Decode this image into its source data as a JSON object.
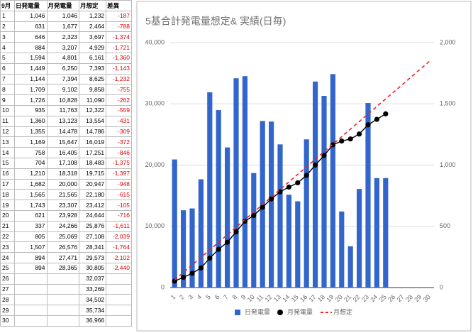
{
  "table": {
    "columns": [
      "9月",
      "日発電量",
      "月発電量",
      "月想定",
      "差異"
    ],
    "rows": [
      {
        "day": "1",
        "daily": "1,046",
        "monthly": "1,046",
        "expected": "1,232",
        "diff": "-187"
      },
      {
        "day": "2",
        "daily": "631",
        "monthly": "1,677",
        "expected": "2,464",
        "diff": "-788"
      },
      {
        "day": "3",
        "daily": "646",
        "monthly": "2,323",
        "expected": "3,697",
        "diff": "-1,374"
      },
      {
        "day": "4",
        "daily": "884",
        "monthly": "3,207",
        "expected": "4,929",
        "diff": "-1,721"
      },
      {
        "day": "5",
        "daily": "1,594",
        "monthly": "4,801",
        "expected": "6,161",
        "diff": "-1,360"
      },
      {
        "day": "6",
        "daily": "1,449",
        "monthly": "6,250",
        "expected": "7,393",
        "diff": "-1,143"
      },
      {
        "day": "7",
        "daily": "1,144",
        "monthly": "7,394",
        "expected": "8,625",
        "diff": "-1,232"
      },
      {
        "day": "8",
        "daily": "1,709",
        "monthly": "9,102",
        "expected": "9,858",
        "diff": "-755"
      },
      {
        "day": "9",
        "daily": "1,726",
        "monthly": "10,828",
        "expected": "11,090",
        "diff": "-262"
      },
      {
        "day": "10",
        "daily": "935",
        "monthly": "11,763",
        "expected": "12,322",
        "diff": "-559"
      },
      {
        "day": "11",
        "daily": "1,360",
        "monthly": "13,123",
        "expected": "13,554",
        "diff": "-431"
      },
      {
        "day": "12",
        "daily": "1,355",
        "monthly": "14,478",
        "expected": "14,786",
        "diff": "-309"
      },
      {
        "day": "13",
        "daily": "1,169",
        "monthly": "15,647",
        "expected": "16,019",
        "diff": "-372"
      },
      {
        "day": "14",
        "daily": "758",
        "monthly": "16,405",
        "expected": "17,251",
        "diff": "-846"
      },
      {
        "day": "15",
        "daily": "704",
        "monthly": "17,108",
        "expected": "18,483",
        "diff": "-1,375"
      },
      {
        "day": "16",
        "daily": "1,210",
        "monthly": "18,318",
        "expected": "19,715",
        "diff": "-1,397"
      },
      {
        "day": "17",
        "daily": "1,682",
        "monthly": "20,000",
        "expected": "20,947",
        "diff": "-948"
      },
      {
        "day": "18",
        "daily": "1,565",
        "monthly": "21,565",
        "expected": "22,180",
        "diff": "-615"
      },
      {
        "day": "19",
        "daily": "1,743",
        "monthly": "23,307",
        "expected": "23,412",
        "diff": "-105"
      },
      {
        "day": "20",
        "daily": "621",
        "monthly": "23,928",
        "expected": "24,644",
        "diff": "-716"
      },
      {
        "day": "21",
        "daily": "337",
        "monthly": "24,266",
        "expected": "25,876",
        "diff": "-1,611"
      },
      {
        "day": "22",
        "daily": "805",
        "monthly": "25,069",
        "expected": "27,108",
        "diff": "-2,039"
      },
      {
        "day": "23",
        "daily": "1,507",
        "monthly": "26,576",
        "expected": "28,341",
        "diff": "-1,764"
      },
      {
        "day": "24",
        "daily": "894",
        "monthly": "27,471",
        "expected": "29,573",
        "diff": "-2,102"
      },
      {
        "day": "25",
        "daily": "894",
        "monthly": "28,365",
        "expected": "30,805",
        "diff": "-2,440"
      },
      {
        "day": "26",
        "expected": "32,037"
      },
      {
        "day": "27",
        "expected": "33,269"
      },
      {
        "day": "28",
        "expected": "34,502"
      },
      {
        "day": "29",
        "expected": "35,734"
      },
      {
        "day": "30",
        "expected": "36,966"
      }
    ]
  },
  "chart_data": {
    "type": "combo",
    "title": "5基合計発電量想定& 実績(日毎)",
    "categories": [
      "1",
      "2",
      "3",
      "4",
      "5",
      "6",
      "7",
      "8",
      "9",
      "10",
      "11",
      "12",
      "13",
      "14",
      "15",
      "16",
      "17",
      "18",
      "19",
      "20",
      "21",
      "22",
      "23",
      "24",
      "25",
      "26",
      "27",
      "28",
      "29",
      "30"
    ],
    "series": [
      {
        "name": "日発電量",
        "type": "bar",
        "axis": "y2",
        "color": "#3366cc",
        "values": [
          1046,
          631,
          646,
          884,
          1594,
          1449,
          1144,
          1709,
          1726,
          935,
          1360,
          1355,
          1169,
          758,
          704,
          1210,
          1682,
          1565,
          1743,
          621,
          337,
          805,
          1507,
          894,
          894,
          null,
          null,
          null,
          null,
          null
        ]
      },
      {
        "name": "月発電量",
        "type": "line",
        "color": "#000000",
        "values": [
          1046,
          1677,
          2323,
          3207,
          4801,
          6250,
          7394,
          9102,
          10828,
          11763,
          13123,
          14478,
          15647,
          16405,
          17108,
          18318,
          20000,
          21565,
          23307,
          23928,
          24266,
          25069,
          26576,
          27471,
          28365,
          null,
          null,
          null,
          null,
          null
        ]
      },
      {
        "name": "月想定",
        "type": "dashed",
        "color": "#ee2222",
        "values": [
          1232,
          2464,
          3697,
          4929,
          6161,
          7393,
          8625,
          9858,
          11090,
          12322,
          13554,
          14786,
          16019,
          17251,
          18483,
          19715,
          20947,
          22180,
          23412,
          24644,
          25876,
          27108,
          28341,
          29573,
          30805,
          32037,
          33269,
          34502,
          35734,
          36966
        ]
      }
    ],
    "ylim": [
      0,
      40000
    ],
    "yticks": [
      0,
      {
        "value": 10000,
        "label": "10,000"
      },
      {
        "value": 20000,
        "label": "20,000"
      },
      {
        "value": 30000,
        "label": "30,000"
      },
      {
        "value": 40000,
        "label": "40,000"
      }
    ],
    "y2lim": [
      0,
      2000
    ],
    "y2ticks": [
      0,
      500,
      {
        "value": 1000,
        "label": "1,000"
      },
      {
        "value": 1500,
        "label": "1,500"
      },
      {
        "value": 2000,
        "label": "2,000"
      }
    ],
    "grid": true,
    "legend": "bottom"
  }
}
